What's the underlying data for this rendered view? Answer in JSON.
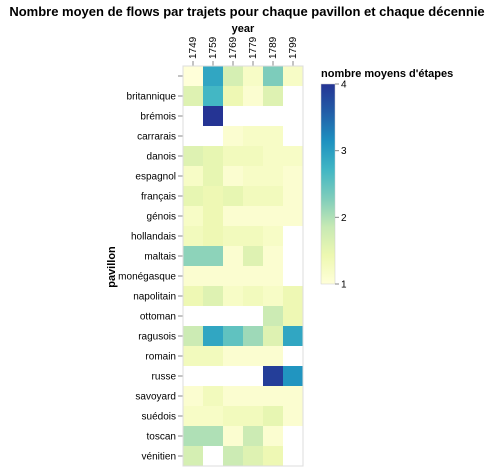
{
  "chart_data": {
    "type": "heatmap",
    "title": "Nombre moyen de flows par trajets pour chaque pavillon et chaque décennie",
    "xlabel": "year",
    "ylabel": "pavillon",
    "x": [
      "1749",
      "1759",
      "1769",
      "1779",
      "1789",
      "1799"
    ],
    "y": [
      "",
      "britannique",
      "brémois",
      "carrarais",
      "danois",
      "espagnol",
      "français",
      "génois",
      "hollandais",
      "maltais",
      "monégasque",
      "napolitain",
      "ottoman",
      "ragusois",
      "romain",
      "russe",
      "savoyard",
      "suédois",
      "toscan",
      "vénitien"
    ],
    "values": [
      [
        1.0,
        2.9,
        1.7,
        1.2,
        2.3,
        1.2
      ],
      [
        1.6,
        2.7,
        1.4,
        1.1,
        1.6,
        null
      ],
      [
        null,
        4.0,
        null,
        null,
        null,
        null
      ],
      [
        null,
        null,
        1.1,
        1.2,
        1.2,
        null
      ],
      [
        1.6,
        1.5,
        1.3,
        1.3,
        1.2,
        1.2
      ],
      [
        1.2,
        1.5,
        1.1,
        1.2,
        1.2,
        1.1
      ],
      [
        1.5,
        1.4,
        1.5,
        1.3,
        1.3,
        1.1
      ],
      [
        1.2,
        1.4,
        1.1,
        1.1,
        1.1,
        1.1
      ],
      [
        1.3,
        1.4,
        1.3,
        1.3,
        1.2,
        null
      ],
      [
        2.2,
        2.2,
        1.1,
        1.6,
        1.1,
        null
      ],
      [
        1.1,
        1.1,
        1.1,
        1.1,
        1.1,
        null
      ],
      [
        1.4,
        1.6,
        1.2,
        1.3,
        1.2,
        1.4
      ],
      [
        null,
        null,
        null,
        null,
        1.8,
        1.4
      ],
      [
        1.8,
        2.9,
        2.5,
        2.1,
        1.6,
        2.9
      ],
      [
        1.3,
        1.3,
        1.1,
        1.1,
        1.1,
        null
      ],
      [
        null,
        null,
        null,
        null,
        3.9,
        3.1
      ],
      [
        1.1,
        1.3,
        1.1,
        1.1,
        1.1,
        1.1
      ],
      [
        1.2,
        1.2,
        1.3,
        1.3,
        1.5,
        1.1
      ],
      [
        2.0,
        2.0,
        1.1,
        1.8,
        1.1,
        null
      ],
      [
        1.7,
        null,
        1.8,
        1.6,
        1.4,
        null
      ]
    ],
    "color_scale": {
      "title": "nombre moyens d'étapes",
      "domain": [
        1,
        4
      ],
      "ticks": [
        1,
        2,
        3,
        4
      ],
      "scheme": [
        "#ffffd9",
        "#edf8b1",
        "#c7e9b4",
        "#7fcdbb",
        "#41b6c4",
        "#1d91c0",
        "#225ea8",
        "#253494"
      ]
    },
    "grid": false,
    "legend_position": "right"
  }
}
